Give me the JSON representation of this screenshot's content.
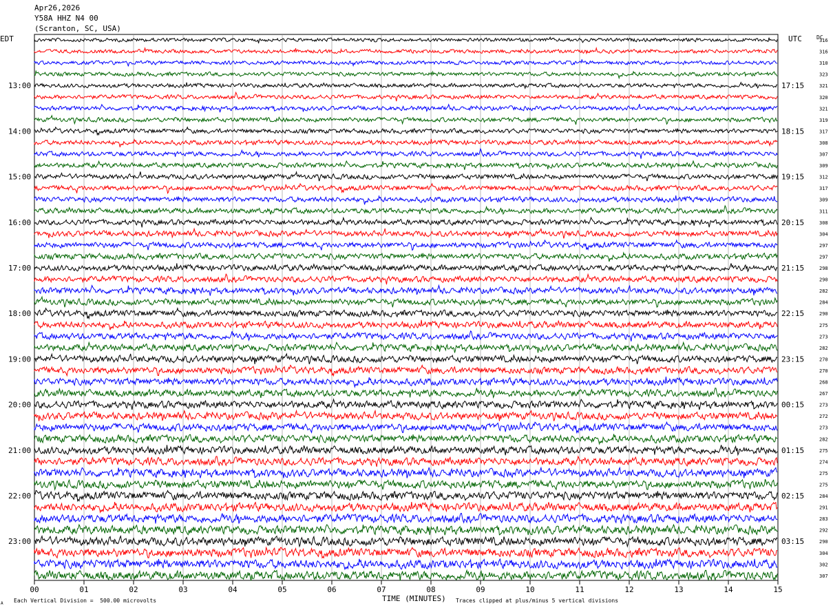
{
  "header": {
    "date": "Apr26,2026",
    "station": "Y58A HHZ N4 00",
    "location": "(Scranton, SC, USA)"
  },
  "left_zone_label": "EDT",
  "right_zone_label": "UTC",
  "dc_label": "DC",
  "footer": {
    "scale_note": "Each Vertical Division =  500.00 microvolts",
    "clip_note": "Traces clipped at plus/minus 5 vertical divisions",
    "corner_mark": "A"
  },
  "chart_data": {
    "type": "line",
    "title": "",
    "xlabel": "TIME (MINUTES)",
    "ylabel": "",
    "xlim": [
      0,
      15
    ],
    "x_ticks": [
      "00",
      "01",
      "02",
      "03",
      "04",
      "05",
      "06",
      "07",
      "08",
      "09",
      "10",
      "11",
      "12",
      "13",
      "14",
      "15"
    ],
    "trace_colors": [
      "#000000",
      "#ff0000",
      "#0000ff",
      "#006400"
    ],
    "rows_per_hour": 4,
    "row_count": 48,
    "left_hour_labels": [
      "13:00",
      "14:00",
      "15:00",
      "16:00",
      "17:00",
      "18:00",
      "19:00",
      "20:00",
      "21:00",
      "22:00",
      "23:00"
    ],
    "right_hour_labels": [
      "17:15",
      "18:15",
      "19:15",
      "20:15",
      "21:15",
      "22:15",
      "23:15",
      "00:15",
      "01:15",
      "02:15",
      "03:15"
    ],
    "dc_offsets": [
      316,
      316,
      310,
      323,
      321,
      320,
      321,
      319,
      317,
      308,
      307,
      309,
      312,
      317,
      309,
      311,
      308,
      304,
      297,
      297,
      298,
      290,
      282,
      284,
      290,
      275,
      273,
      282,
      270,
      270,
      268,
      267,
      273,
      272,
      273,
      282,
      275,
      274,
      275,
      275,
      284,
      291,
      283,
      292,
      290,
      304,
      302,
      307
    ]
  }
}
